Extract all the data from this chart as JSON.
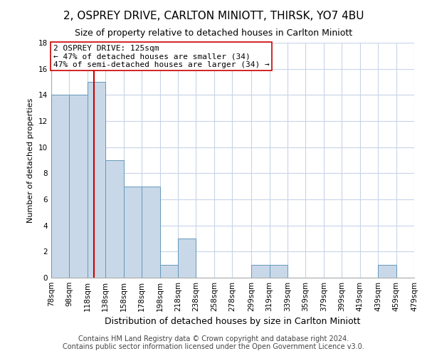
{
  "title": "2, OSPREY DRIVE, CARLTON MINIOTT, THIRSK, YO7 4BU",
  "subtitle": "Size of property relative to detached houses in Carlton Miniott",
  "xlabel": "Distribution of detached houses by size in Carlton Miniott",
  "ylabel": "Number of detached properties",
  "bar_color": "#c8d8e8",
  "bar_edge_color": "#6699bb",
  "bin_edges": [
    78,
    98,
    118,
    138,
    158,
    178,
    198,
    218,
    238,
    258,
    278,
    299,
    319,
    339,
    359,
    379,
    399,
    419,
    439,
    459,
    479
  ],
  "bin_labels": [
    "78sqm",
    "98sqm",
    "118sqm",
    "138sqm",
    "158sqm",
    "178sqm",
    "198sqm",
    "218sqm",
    "238sqm",
    "258sqm",
    "278sqm",
    "299sqm",
    "319sqm",
    "339sqm",
    "359sqm",
    "379sqm",
    "399sqm",
    "419sqm",
    "439sqm",
    "459sqm",
    "479sqm"
  ],
  "counts": [
    14,
    14,
    15,
    9,
    7,
    7,
    1,
    3,
    0,
    0,
    0,
    1,
    1,
    0,
    0,
    0,
    0,
    0,
    1,
    0
  ],
  "property_size": 125,
  "property_line_color": "#cc0000",
  "annotation_line1": "2 OSPREY DRIVE: 125sqm",
  "annotation_line2": "← 47% of detached houses are smaller (34)",
  "annotation_line3": "47% of semi-detached houses are larger (34) →",
  "annotation_box_color": "#ffffff",
  "annotation_box_edge_color": "#cc0000",
  "ylim": [
    0,
    18
  ],
  "yticks": [
    0,
    2,
    4,
    6,
    8,
    10,
    12,
    14,
    16,
    18
  ],
  "footer1": "Contains HM Land Registry data © Crown copyright and database right 2024.",
  "footer2": "Contains public sector information licensed under the Open Government Licence v3.0.",
  "background_color": "#ffffff",
  "grid_color": "#c8d4e8",
  "title_fontsize": 11,
  "subtitle_fontsize": 9,
  "xlabel_fontsize": 9,
  "ylabel_fontsize": 8,
  "tick_fontsize": 7.5,
  "annotation_fontsize": 8,
  "footer_fontsize": 7
}
